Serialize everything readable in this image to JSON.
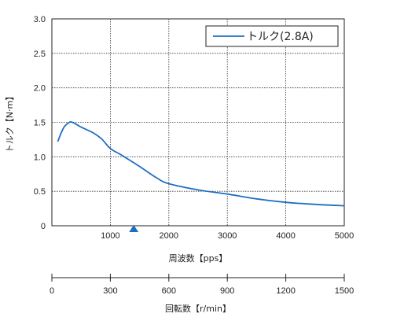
{
  "chart_data": {
    "type": "line",
    "xlabel": "周波数【pps】",
    "ylabel": "トルク【N·m】",
    "xlim": [
      0,
      5000
    ],
    "ylim": [
      0,
      3.0
    ],
    "x_ticks": [
      "1000",
      "2000",
      "3000",
      "4000",
      "5000"
    ],
    "y_ticks": [
      "0",
      "0.5",
      "1.0",
      "1.5",
      "2.0",
      "2.5",
      "3.0"
    ],
    "grid": true,
    "legend_position": "top-right",
    "marker": {
      "shape": "triangle",
      "x": 1400,
      "color": "#1f6fbf"
    },
    "series": [
      {
        "name": "トルク(2.8A)",
        "color": "#1f6fbf",
        "x": [
          100,
          200,
          300,
          350,
          400,
          500,
          700,
          850,
          1000,
          1200,
          1500,
          1800,
          2000,
          2500,
          3000,
          3500,
          4000,
          4500,
          5000
        ],
        "y": [
          1.22,
          1.42,
          1.5,
          1.5,
          1.48,
          1.43,
          1.35,
          1.26,
          1.12,
          1.02,
          0.86,
          0.69,
          0.61,
          0.52,
          0.46,
          0.39,
          0.34,
          0.31,
          0.29
        ]
      }
    ],
    "secondary_axis": {
      "label": "回転数【r/min】",
      "lim": [
        0,
        1500
      ],
      "ticks": [
        "0",
        "300",
        "600",
        "900",
        "1200",
        "1500"
      ]
    }
  }
}
